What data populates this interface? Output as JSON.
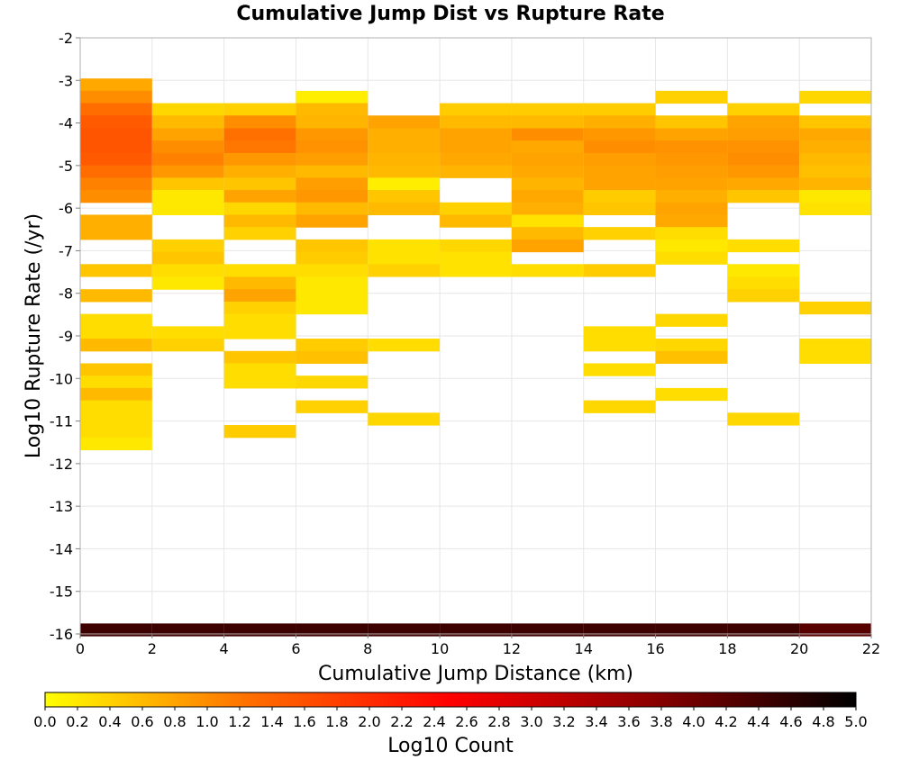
{
  "chart_data": {
    "type": "heatmap",
    "title": "Cumulative Jump Dist vs Rupture Rate",
    "xlabel": "Cumulative Jump Distance (km)",
    "ylabel": "Log10 Rupture Rate (/yr)",
    "colorbar_label": "Log10 Count",
    "xlim": [
      0,
      22
    ],
    "ylim": [
      -16,
      -2
    ],
    "x_ticks": [
      "0",
      "2",
      "4",
      "6",
      "8",
      "10",
      "12",
      "14",
      "16",
      "18",
      "20",
      "22"
    ],
    "y_ticks": [
      "-2",
      "-3",
      "-4",
      "-5",
      "-6",
      "-7",
      "-8",
      "-9",
      "-10",
      "-11",
      "-12",
      "-13",
      "-14",
      "-15",
      "-16"
    ],
    "colorbar_ticks": [
      "0.0",
      "0.2",
      "0.4",
      "0.6",
      "0.8",
      "1.0",
      "1.2",
      "1.4",
      "1.6",
      "1.8",
      "2.0",
      "2.2",
      "2.4",
      "2.6",
      "2.8",
      "3.0",
      "3.2",
      "3.4",
      "3.6",
      "3.8",
      "4.0",
      "4.2",
      "4.4",
      "4.6",
      "4.8",
      "5.0"
    ],
    "color_range": [
      0,
      5
    ],
    "colormap": [
      "#ffff00",
      "#ff7000",
      "#ff0000",
      "#8a0000",
      "#000000"
    ],
    "grid": true,
    "x_bin_width": 2,
    "y_bin_height": 0.2911,
    "bin_rows": [
      -3.1,
      -3.39,
      -3.68,
      -3.97,
      -4.27,
      -4.56,
      -4.85,
      -5.14,
      -5.43,
      -5.72,
      -6.01,
      -6.3,
      -6.59,
      -6.88,
      -7.17,
      -7.46,
      -7.76,
      -8.05,
      -8.34,
      -8.63,
      -8.92,
      -9.21,
      -9.5,
      -9.79,
      -10.08,
      -10.37,
      -10.66,
      -10.95,
      -11.24,
      -11.53,
      -15.9
    ],
    "columns": [
      {
        "x": 0,
        "cells": [
          0.75,
          1.0,
          1.3,
          1.5,
          1.55,
          1.55,
          1.5,
          1.3,
          1.1,
          1.0,
          null,
          0.7,
          0.7,
          null,
          null,
          0.5,
          null,
          0.6,
          null,
          0.3,
          0.3,
          0.6,
          null,
          0.5,
          0.3,
          0.6,
          0.3,
          0.3,
          0.3,
          0.2,
          4.45
        ]
      },
      {
        "x": 2,
        "cells": [
          null,
          null,
          0.35,
          0.6,
          0.8,
          1.0,
          1.1,
          0.9,
          0.5,
          0.2,
          0.2,
          null,
          null,
          0.4,
          0.5,
          0.3,
          0.2,
          null,
          null,
          null,
          0.3,
          0.4,
          null,
          null,
          null,
          null,
          null,
          null,
          null,
          null,
          4.45
        ]
      },
      {
        "x": 4,
        "cells": [
          null,
          null,
          0.4,
          1.0,
          1.25,
          1.2,
          0.9,
          0.7,
          0.5,
          0.8,
          0.35,
          0.6,
          0.4,
          null,
          null,
          0.3,
          0.6,
          0.8,
          0.4,
          0.3,
          0.3,
          null,
          0.5,
          0.3,
          0.3,
          null,
          null,
          null,
          0.45,
          null,
          4.45
        ]
      },
      {
        "x": 6,
        "cells": [
          null,
          0.15,
          0.6,
          0.65,
          0.9,
          0.95,
          0.85,
          0.6,
          0.85,
          0.9,
          0.6,
          0.8,
          null,
          0.5,
          0.45,
          0.3,
          0.2,
          0.2,
          0.2,
          null,
          null,
          0.45,
          0.55,
          null,
          0.35,
          null,
          0.4,
          null,
          null,
          null,
          4.45
        ]
      },
      {
        "x": 8,
        "cells": [
          null,
          null,
          null,
          0.8,
          0.7,
          0.7,
          0.65,
          0.6,
          0.15,
          0.5,
          0.6,
          null,
          null,
          0.25,
          0.25,
          0.4,
          null,
          null,
          null,
          null,
          null,
          0.3,
          null,
          null,
          null,
          null,
          null,
          0.35,
          null,
          null,
          4.45
        ]
      },
      {
        "x": 10,
        "cells": [
          null,
          null,
          0.45,
          0.6,
          0.8,
          0.8,
          0.75,
          0.65,
          null,
          null,
          0.4,
          0.6,
          null,
          0.35,
          0.25,
          0.25,
          null,
          null,
          null,
          null,
          null,
          null,
          null,
          null,
          null,
          null,
          null,
          null,
          null,
          null,
          4.45
        ]
      },
      {
        "x": 12,
        "cells": [
          null,
          null,
          0.45,
          0.6,
          1.0,
          0.75,
          0.8,
          0.75,
          0.65,
          0.75,
          0.7,
          0.25,
          0.6,
          0.8,
          null,
          0.3,
          null,
          null,
          null,
          null,
          null,
          null,
          null,
          null,
          null,
          null,
          null,
          null,
          null,
          null,
          4.45
        ]
      },
      {
        "x": 14,
        "cells": [
          null,
          null,
          0.45,
          0.7,
          0.9,
          1.0,
          0.85,
          0.8,
          0.8,
          0.45,
          0.5,
          null,
          0.4,
          null,
          null,
          0.45,
          null,
          null,
          null,
          null,
          0.3,
          0.3,
          null,
          0.3,
          null,
          null,
          0.35,
          null,
          null,
          null,
          4.45
        ]
      },
      {
        "x": 16,
        "cells": [
          null,
          0.4,
          null,
          0.5,
          0.8,
          0.95,
          0.9,
          0.85,
          0.8,
          0.7,
          0.8,
          0.75,
          0.3,
          0.2,
          0.3,
          null,
          null,
          null,
          null,
          0.35,
          null,
          0.35,
          0.55,
          null,
          null,
          0.3,
          null,
          null,
          null,
          null,
          4.45
        ]
      },
      {
        "x": 18,
        "cells": [
          null,
          null,
          0.4,
          0.8,
          0.85,
          0.95,
          1.0,
          0.9,
          0.75,
          0.5,
          null,
          null,
          null,
          0.3,
          null,
          0.2,
          0.3,
          0.4,
          null,
          null,
          null,
          null,
          null,
          null,
          null,
          null,
          null,
          0.35,
          null,
          null,
          4.45
        ]
      },
      {
        "x": 20,
        "cells": [
          null,
          0.35,
          null,
          0.5,
          0.75,
          0.7,
          0.6,
          0.55,
          0.65,
          0.2,
          0.25,
          null,
          null,
          null,
          null,
          null,
          null,
          null,
          0.4,
          null,
          null,
          0.3,
          0.3,
          null,
          null,
          null,
          null,
          null,
          null,
          null,
          4.2
        ]
      }
    ]
  }
}
